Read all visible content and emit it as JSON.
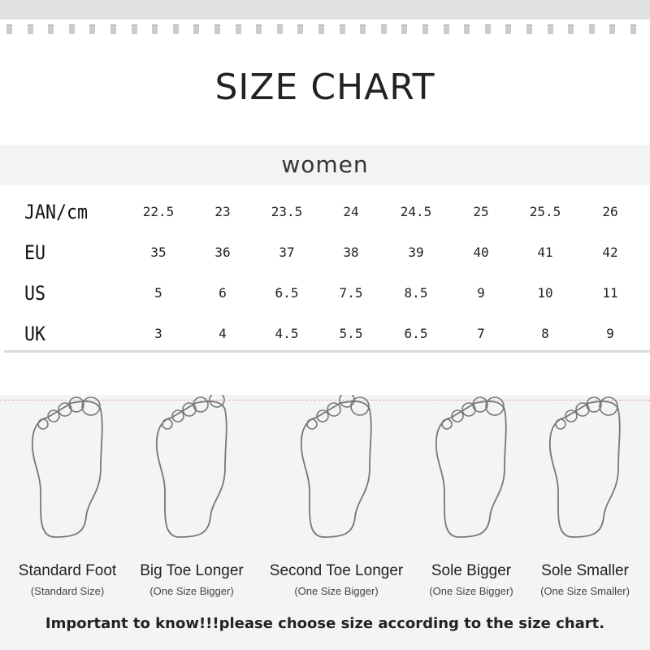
{
  "title": "SIZE CHART",
  "section": "women",
  "columns_count": 8,
  "rows": [
    {
      "label": "JAN/cm",
      "values": [
        "22.5",
        "23",
        "23.5",
        "24",
        "24.5",
        "25",
        "25.5",
        "26"
      ]
    },
    {
      "label": "EU",
      "values": [
        "35",
        "36",
        "37",
        "38",
        "39",
        "40",
        "41",
        "42"
      ]
    },
    {
      "label": "US",
      "values": [
        "5",
        "6",
        "6.5",
        "7.5",
        "8.5",
        "9",
        "10",
        "11"
      ]
    },
    {
      "label": "UK",
      "values": [
        "3",
        "4",
        "4.5",
        "5.5",
        "6.5",
        "7",
        "8",
        "9"
      ]
    }
  ],
  "feet": [
    {
      "label": "Standard Foot",
      "sub": "(Standard Size)",
      "icon": "standard-foot-icon"
    },
    {
      "label": "Big Toe Longer",
      "sub": "(One Size Bigger)",
      "icon": "big-toe-foot-icon"
    },
    {
      "label": "Second Toe Longer",
      "sub": "(One Size Bigger)",
      "icon": "second-toe-foot-icon"
    },
    {
      "label": "Sole Bigger",
      "sub": "(One Size Bigger)",
      "icon": "sole-bigger-foot-icon"
    },
    {
      "label": "Sole Smaller",
      "sub": "(One Size Smaller)",
      "icon": "sole-smaller-foot-icon"
    }
  ],
  "note": "Important to know!!!please choose size according to the size chart."
}
